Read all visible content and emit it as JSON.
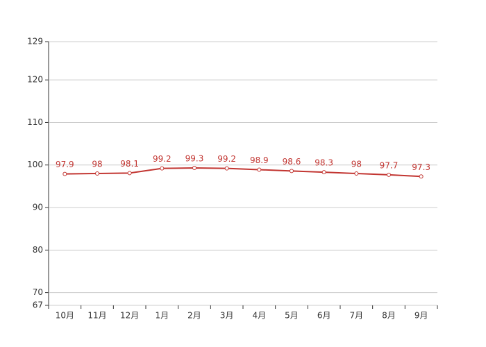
{
  "chart_data": {
    "type": "line",
    "categories": [
      "10月",
      "11月",
      "12月",
      "1月",
      "2月",
      "3月",
      "4月",
      "5月",
      "6月",
      "7月",
      "8月",
      "9月"
    ],
    "values": [
      97.9,
      98,
      98.1,
      99.2,
      99.3,
      99.2,
      98.9,
      98.6,
      98.3,
      98,
      97.7,
      97.3
    ],
    "color": "#c23531",
    "ylim": [
      67,
      129
    ],
    "yticks": [
      67,
      70,
      80,
      90,
      100,
      110,
      120,
      129
    ],
    "grid": true
  }
}
